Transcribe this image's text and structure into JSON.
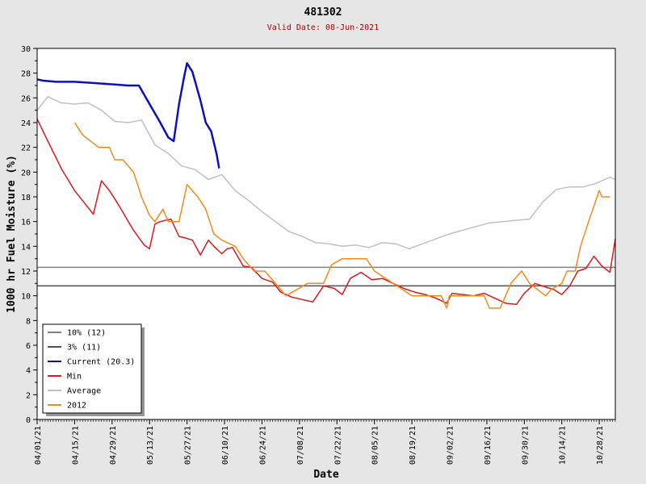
{
  "chart_data": {
    "type": "line",
    "title": "481302",
    "subtitle": "Valid Date: 08-Jun-2021",
    "xlabel": "Date",
    "ylabel": "1000 hr Fuel Moisture (%)",
    "ylim": [
      0,
      30
    ],
    "yticks": [
      0,
      2,
      4,
      6,
      8,
      10,
      12,
      14,
      16,
      18,
      20,
      22,
      24,
      26,
      28,
      30
    ],
    "xlim": [
      "04/01/21",
      "11/03/21"
    ],
    "xticks": [
      "04/01/21",
      "04/15/21",
      "04/29/21",
      "05/13/21",
      "05/27/21",
      "06/10/21",
      "06/24/21",
      "07/08/21",
      "07/22/21",
      "08/05/21",
      "08/19/21",
      "09/02/21",
      "09/16/21",
      "09/30/21",
      "10/14/21",
      "10/28/21"
    ],
    "grid": false,
    "legend_position": "bottom-left",
    "series": [
      {
        "name": "10% (12)",
        "color": "#808080",
        "constant": 12.3
      },
      {
        "name": "3% (11)",
        "color": "#505050",
        "constant": 10.8
      },
      {
        "name": "Current (20.3)",
        "color": "#0a10c0",
        "x": [
          "04/01/21",
          "04/03/21",
          "04/08/21",
          "04/15/21",
          "04/22/21",
          "04/29/21",
          "05/05/21",
          "05/09/21",
          "05/13/21",
          "05/17/21",
          "05/20/21",
          "05/22/21",
          "05/24/21",
          "05/26/21",
          "05/27/21",
          "05/29/21",
          "06/01/21",
          "06/03/21",
          "06/05/21",
          "06/07/21",
          "06/08/21"
        ],
        "y": [
          27.5,
          27.4,
          27.3,
          27.3,
          27.2,
          27.1,
          27.0,
          27.0,
          25.5,
          24.0,
          22.8,
          22.5,
          25.5,
          27.8,
          28.8,
          28.1,
          25.8,
          24.0,
          23.3,
          21.5,
          20.3
        ]
      },
      {
        "name": "Min",
        "color": "#d8191e",
        "x": [
          "04/01/21",
          "04/05/21",
          "04/10/21",
          "04/15/21",
          "04/22/21",
          "04/25/21",
          "04/28/21",
          "05/01/21",
          "05/07/21",
          "05/11/21",
          "05/13/21",
          "05/15/21",
          "05/17/21",
          "05/21/21",
          "05/24/21",
          "05/26/21",
          "05/29/21",
          "06/01/21",
          "06/04/21",
          "06/06/21",
          "06/09/21",
          "06/11/21",
          "06/13/21",
          "06/17/21",
          "06/20/21",
          "06/24/21",
          "06/28/21",
          "07/01/21",
          "07/05/21",
          "07/09/21",
          "07/13/21",
          "07/17/21",
          "07/21/21",
          "07/24/21",
          "07/27/21",
          "07/31/21",
          "08/04/21",
          "08/08/21",
          "08/12/21",
          "08/16/21",
          "08/20/21",
          "08/24/21",
          "08/28/21",
          "09/01/21",
          "09/03/21",
          "09/07/21",
          "09/11/21",
          "09/15/21",
          "09/19/21",
          "09/23/21",
          "09/27/21",
          "09/30/21",
          "10/04/21",
          "10/08/21",
          "10/11/21",
          "10/14/21",
          "10/17/21",
          "10/20/21",
          "10/23/21",
          "10/26/21",
          "10/29/21",
          "11/01/21",
          "11/03/21"
        ],
        "y": [
          24.3,
          22.5,
          20.3,
          18.5,
          16.6,
          19.3,
          18.5,
          17.5,
          15.3,
          14.1,
          13.8,
          15.8,
          16.0,
          16.2,
          14.8,
          14.7,
          14.5,
          13.3,
          14.5,
          14.0,
          13.4,
          13.8,
          13.9,
          12.4,
          12.3,
          11.4,
          11.1,
          10.3,
          9.9,
          9.7,
          9.5,
          10.8,
          10.6,
          10.1,
          11.4,
          11.9,
          11.3,
          11.4,
          11.0,
          10.6,
          10.3,
          10.1,
          9.8,
          9.4,
          10.2,
          10.1,
          10.0,
          10.2,
          9.8,
          9.4,
          9.3,
          10.2,
          11.0,
          10.7,
          10.5,
          10.1,
          10.8,
          12.0,
          12.2,
          13.2,
          12.4,
          11.9,
          14.6
        ]
      },
      {
        "name": "Average",
        "color": "#c0c0c0",
        "x": [
          "04/01/21",
          "04/05/21",
          "04/10/21",
          "04/15/21",
          "04/20/21",
          "04/25/21",
          "04/30/21",
          "05/05/21",
          "05/10/21",
          "05/15/21",
          "05/20/21",
          "05/25/21",
          "05/30/21",
          "06/04/21",
          "06/09/21",
          "06/14/21",
          "06/19/21",
          "06/24/21",
          "06/29/21",
          "07/04/21",
          "07/09/21",
          "07/14/21",
          "07/19/21",
          "07/24/21",
          "07/29/21",
          "08/03/21",
          "08/08/21",
          "08/13/21",
          "08/18/21",
          "08/23/21",
          "08/28/21",
          "09/02/21",
          "09/07/21",
          "09/12/21",
          "09/17/21",
          "09/22/21",
          "09/27/21",
          "10/02/21",
          "10/07/21",
          "10/12/21",
          "10/17/21",
          "10/22/21",
          "10/27/21",
          "11/01/21",
          "11/03/21"
        ],
        "y": [
          25.0,
          26.1,
          25.6,
          25.5,
          25.6,
          25.0,
          24.1,
          24.0,
          24.2,
          22.2,
          21.5,
          20.5,
          20.2,
          19.4,
          19.8,
          18.5,
          17.7,
          16.8,
          16.0,
          15.2,
          14.8,
          14.3,
          14.2,
          14.0,
          14.1,
          13.9,
          14.3,
          14.2,
          13.8,
          14.2,
          14.6,
          15.0,
          15.3,
          15.6,
          15.9,
          16.0,
          16.1,
          16.2,
          17.6,
          18.6,
          18.8,
          18.8,
          19.1,
          19.6,
          19.4
        ]
      },
      {
        "name": "2012",
        "color": "#f08a1c",
        "x": [
          "04/15/21",
          "04/18/21",
          "04/24/21",
          "04/28/21",
          "04/30/21",
          "05/03/21",
          "05/07/21",
          "05/10/21",
          "05/13/21",
          "05/15/21",
          "05/18/21",
          "05/20/21",
          "05/24/21",
          "05/27/21",
          "05/31/21",
          "06/03/21",
          "06/06/21",
          "06/09/21",
          "06/14/21",
          "06/17/21",
          "06/21/21",
          "06/25/21",
          "06/29/21",
          "07/03/21",
          "07/11/21",
          "07/17/21",
          "07/20/21",
          "07/24/21",
          "08/02/21",
          "08/05/21",
          "08/12/21",
          "08/19/21",
          "08/30/21",
          "09/01/21",
          "09/02/21",
          "09/13/21",
          "09/15/21",
          "09/17/21",
          "09/21/21",
          "09/25/21",
          "09/29/21",
          "10/02/21",
          "10/08/21",
          "10/10/21",
          "10/14/21",
          "10/16/21",
          "10/19/21",
          "10/21/21",
          "10/24/21",
          "10/28/21",
          "10/29/21",
          "11/01/21"
        ],
        "y": [
          24.0,
          23.0,
          22.0,
          22.0,
          21.0,
          21.0,
          20.0,
          18.0,
          16.5,
          16.0,
          17.0,
          16.0,
          16.0,
          19.0,
          18.0,
          17.0,
          15.0,
          14.5,
          14.0,
          13.0,
          12.0,
          12.0,
          11.0,
          10.0,
          11.0,
          11.0,
          12.5,
          13.0,
          13.0,
          12.0,
          11.0,
          10.0,
          10.0,
          9.0,
          10.0,
          10.0,
          10.0,
          9.0,
          9.0,
          11.0,
          12.0,
          11.0,
          10.0,
          10.5,
          11.0,
          12.0,
          12.0,
          14.0,
          16.0,
          18.5,
          18.0,
          18.0
        ]
      }
    ]
  }
}
